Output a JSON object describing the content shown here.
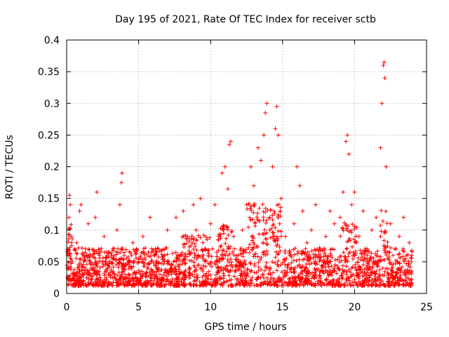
{
  "chart_data": {
    "type": "scatter",
    "title": "Day 195 of 2021, Rate Of TEC Index for receiver sctb",
    "xlabel": "GPS time / hours",
    "ylabel": "ROTI / TECUs",
    "xlim": [
      0,
      25
    ],
    "ylim": [
      0,
      0.4
    ],
    "x_ticks": [
      0,
      5,
      10,
      15,
      20,
      25
    ],
    "y_ticks": [
      0,
      0.05,
      0.1,
      0.15,
      0.2,
      0.25,
      0.3,
      0.35,
      0.4
    ],
    "x_tick_labels": [
      "0",
      "5",
      "10",
      "15",
      "20",
      "25"
    ],
    "y_tick_labels": [
      "0",
      "0.05",
      "0.1",
      "0.15",
      "0.2",
      "0.25",
      "0.3",
      "0.35",
      "0.4"
    ],
    "grid": true,
    "marker": "+",
    "marker_color": "#ff0000",
    "data_range_hours": [
      0,
      24
    ],
    "point_count_note": "dense scatter of thousands of ROTI samples; representative points listed",
    "series": [
      {
        "name": "ROTI",
        "color": "#ff0000",
        "points": [
          [
            0.05,
            0.04
          ],
          [
            0.1,
            0.06
          ],
          [
            0.15,
            0.12
          ],
          [
            0.2,
            0.155
          ],
          [
            0.25,
            0.14
          ],
          [
            0.3,
            0.09
          ],
          [
            0.4,
            0.05
          ],
          [
            0.5,
            0.03
          ],
          [
            0.7,
            0.08
          ],
          [
            0.9,
            0.13
          ],
          [
            1.0,
            0.14
          ],
          [
            1.2,
            0.06
          ],
          [
            1.5,
            0.11
          ],
          [
            1.7,
            0.04
          ],
          [
            2.0,
            0.12
          ],
          [
            2.1,
            0.16
          ],
          [
            2.3,
            0.05
          ],
          [
            2.6,
            0.09
          ],
          [
            2.9,
            0.03
          ],
          [
            3.2,
            0.07
          ],
          [
            3.5,
            0.1
          ],
          [
            3.7,
            0.14
          ],
          [
            3.8,
            0.175
          ],
          [
            3.85,
            0.19
          ],
          [
            4.0,
            0.06
          ],
          [
            4.3,
            0.03
          ],
          [
            4.6,
            0.08
          ],
          [
            5.0,
            0.05
          ],
          [
            5.3,
            0.09
          ],
          [
            5.6,
            0.04
          ],
          [
            5.8,
            0.12
          ],
          [
            6.1,
            0.03
          ],
          [
            6.4,
            0.07
          ],
          [
            6.8,
            0.05
          ],
          [
            7.0,
            0.1
          ],
          [
            7.3,
            0.04
          ],
          [
            7.6,
            0.12
          ],
          [
            7.9,
            0.06
          ],
          [
            8.1,
            0.13
          ],
          [
            8.4,
            0.09
          ],
          [
            8.8,
            0.14
          ],
          [
            9.0,
            0.1
          ],
          [
            9.3,
            0.15
          ],
          [
            9.6,
            0.07
          ],
          [
            10.0,
            0.11
          ],
          [
            10.3,
            0.14
          ],
          [
            10.6,
            0.05
          ],
          [
            10.8,
            0.19
          ],
          [
            11.0,
            0.2
          ],
          [
            11.2,
            0.165
          ],
          [
            11.3,
            0.235
          ],
          [
            11.4,
            0.24
          ],
          [
            11.6,
            0.09
          ],
          [
            11.9,
            0.06
          ],
          [
            12.2,
            0.1
          ],
          [
            12.5,
            0.14
          ],
          [
            12.8,
            0.2
          ],
          [
            13.0,
            0.17
          ],
          [
            13.3,
            0.23
          ],
          [
            13.5,
            0.21
          ],
          [
            13.7,
            0.25
          ],
          [
            13.8,
            0.285
          ],
          [
            13.9,
            0.3
          ],
          [
            14.1,
            0.12
          ],
          [
            14.3,
            0.2
          ],
          [
            14.5,
            0.26
          ],
          [
            14.6,
            0.295
          ],
          [
            14.7,
            0.25
          ],
          [
            14.9,
            0.15
          ],
          [
            15.2,
            0.09
          ],
          [
            15.5,
            0.06
          ],
          [
            15.8,
            0.11
          ],
          [
            16.0,
            0.2
          ],
          [
            16.2,
            0.17
          ],
          [
            16.4,
            0.13
          ],
          [
            16.7,
            0.08
          ],
          [
            17.0,
            0.1
          ],
          [
            17.3,
            0.14
          ],
          [
            17.6,
            0.07
          ],
          [
            18.0,
            0.09
          ],
          [
            18.3,
            0.13
          ],
          [
            18.6,
            0.11
          ],
          [
            19.0,
            0.12
          ],
          [
            19.2,
            0.16
          ],
          [
            19.4,
            0.24
          ],
          [
            19.5,
            0.25
          ],
          [
            19.6,
            0.22
          ],
          [
            19.8,
            0.14
          ],
          [
            20.0,
            0.16
          ],
          [
            20.3,
            0.09
          ],
          [
            20.6,
            0.13
          ],
          [
            20.9,
            0.07
          ],
          [
            21.2,
            0.1
          ],
          [
            21.5,
            0.12
          ],
          [
            21.8,
            0.23
          ],
          [
            21.9,
            0.3
          ],
          [
            22.0,
            0.36
          ],
          [
            22.05,
            0.365
          ],
          [
            22.1,
            0.34
          ],
          [
            22.2,
            0.2
          ],
          [
            22.5,
            0.11
          ],
          [
            22.8,
            0.07
          ],
          [
            23.1,
            0.09
          ],
          [
            23.4,
            0.12
          ],
          [
            23.6,
            0.06
          ],
          [
            23.8,
            0.08
          ],
          [
            23.95,
            0.05
          ]
        ]
      }
    ]
  }
}
